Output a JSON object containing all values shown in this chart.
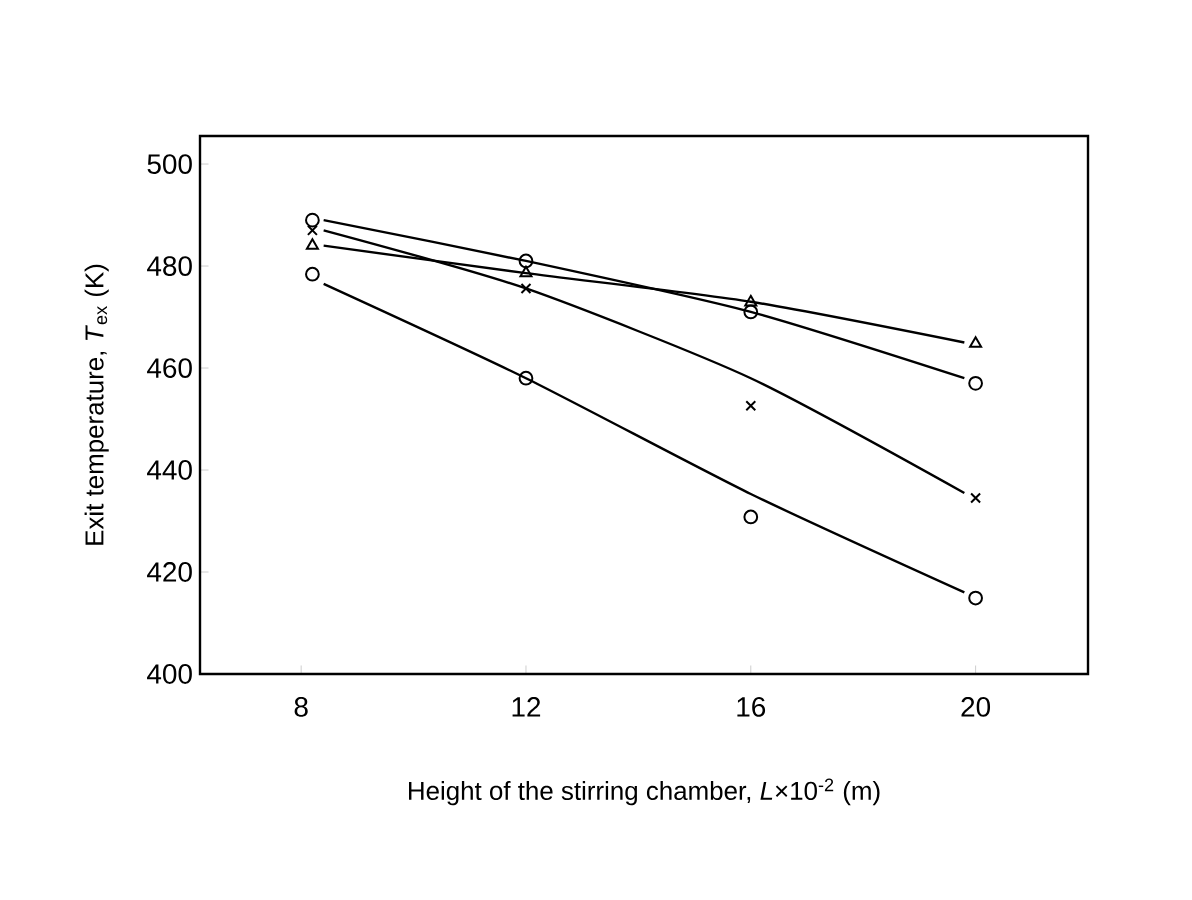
{
  "chart_data": {
    "type": "scatter",
    "xlabel": "Height of the stirring chamber, *L*×10$^{-2}$ (m)",
    "ylabel": "Exit temperature, *T*$_{ex}$ (K)",
    "xlim": [
      6.2,
      22
    ],
    "ylim": [
      400,
      505.5
    ],
    "xticks": [
      8,
      12,
      16,
      20
    ],
    "yticks": [
      400,
      420,
      440,
      460,
      480,
      500
    ],
    "grid": false,
    "series": [
      {
        "marker": "circle",
        "color": "#000000",
        "x": [
          8.2,
          12,
          16,
          20
        ],
        "values": [
          489,
          481,
          471,
          457
        ]
      },
      {
        "marker": "triangle",
        "color": "#000000",
        "x": [
          8.2,
          12,
          16,
          20
        ],
        "values": [
          484,
          478.6,
          472.9,
          464.8
        ]
      },
      {
        "marker": "cross",
        "color": "#000000",
        "x": [
          8.2,
          12,
          16,
          20
        ],
        "values": [
          487,
          475.6,
          452.6,
          434.5
        ]
      },
      {
        "marker": "circle",
        "color": "#000000",
        "x": [
          8.2,
          12,
          16,
          20
        ],
        "values": [
          478.4,
          458,
          430.8,
          414.9
        ]
      },
      {
        "type": "line",
        "marker": "none",
        "color": "#000000",
        "x": [
          8.4,
          12,
          16,
          19.8
        ],
        "values": [
          489,
          481,
          471,
          458
        ]
      },
      {
        "type": "line",
        "marker": "none",
        "color": "#000000",
        "x": [
          8.4,
          12,
          16,
          19.8
        ],
        "values": [
          484,
          478.6,
          473,
          465
        ]
      },
      {
        "type": "line",
        "marker": "none",
        "color": "#000000",
        "x": [
          8.4,
          12,
          16,
          19.8
        ],
        "values": [
          487,
          475.6,
          458,
          435.5
        ]
      },
      {
        "type": "line",
        "marker": "none",
        "color": "#000000",
        "x": [
          8.4,
          12,
          16,
          19.8
        ],
        "values": [
          476.5,
          458,
          435.3,
          416
        ]
      }
    ]
  }
}
